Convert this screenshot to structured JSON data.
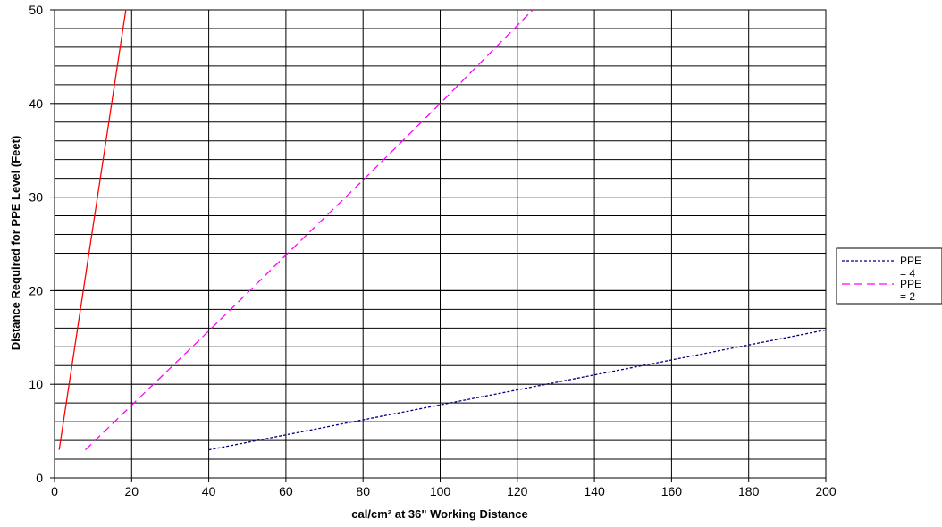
{
  "chart_data": {
    "type": "line",
    "xlabel": "cal/cm² at 36\" Working Distance",
    "ylabel": "Distance Required for PPE Level (Feet)",
    "xlim": [
      0,
      200
    ],
    "ylim": [
      0,
      50
    ],
    "x_ticks": [
      "0",
      "20",
      "40",
      "60",
      "80",
      "100",
      "120",
      "140",
      "160",
      "180",
      "200"
    ],
    "y_ticks": [
      "0",
      "10",
      "20",
      "30",
      "40",
      "50"
    ],
    "grid": "on",
    "legend_position": "right",
    "series": [
      {
        "name": "",
        "color": "#ff0000",
        "style": "solid",
        "in_legend": false,
        "points": [
          [
            1.2,
            3
          ],
          [
            18.5,
            50
          ]
        ]
      },
      {
        "name": "PPE = 2",
        "color": "#ff00ff",
        "style": "dashed",
        "in_legend": true,
        "points": [
          [
            8,
            3
          ],
          [
            40,
            15.7
          ],
          [
            60,
            23.8
          ],
          [
            80,
            31.8
          ],
          [
            100,
            40
          ],
          [
            124,
            50
          ]
        ]
      },
      {
        "name": "PPE = 4",
        "color": "#000080",
        "style": "dotted",
        "in_legend": true,
        "points": [
          [
            40,
            3
          ],
          [
            80,
            6.2
          ],
          [
            100,
            7.8
          ],
          [
            140,
            11
          ],
          [
            180,
            14.2
          ],
          [
            200,
            15.8
          ]
        ]
      }
    ],
    "legend": [
      {
        "label_line1": "PPE",
        "label_line2": "= 4",
        "color": "#000080",
        "style": "dotted"
      },
      {
        "label_line1": "PPE",
        "label_line2": "= 2",
        "color": "#ff00ff",
        "style": "dashed"
      }
    ]
  }
}
